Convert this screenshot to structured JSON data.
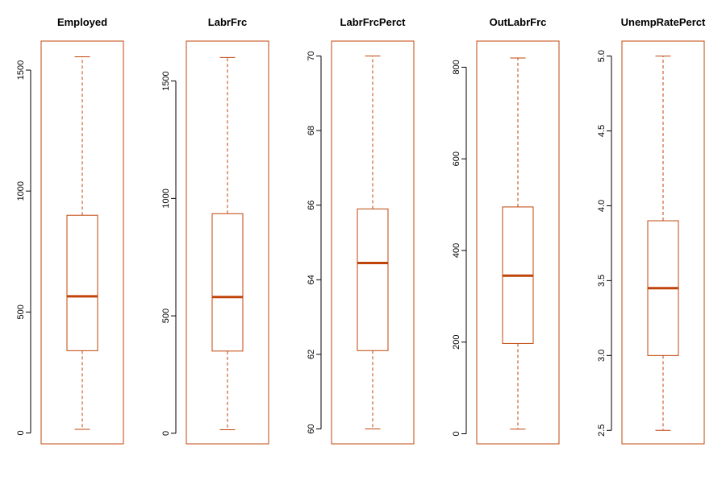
{
  "colors": {
    "box": "#c0440a",
    "median": "#c0440a",
    "text": "#000000",
    "axis": "#000000",
    "background": "#ffffff"
  },
  "chart_data": [
    {
      "type": "boxplot",
      "title": "Employed",
      "ylim": [
        -45,
        1620
      ],
      "ticks": [
        0,
        500,
        1000,
        1500
      ],
      "tick_labels": [
        "0",
        "500",
        "1000",
        "1500"
      ],
      "stats": {
        "min": 15,
        "q1": 340,
        "median": 565,
        "q3": 900,
        "max": 1555
      }
    },
    {
      "type": "boxplot",
      "title": "LabrFrc",
      "ylim": [
        -45,
        1670
      ],
      "ticks": [
        0,
        500,
        1000,
        1500
      ],
      "tick_labels": [
        "0",
        "500",
        "1000",
        "1500"
      ],
      "stats": {
        "min": 15,
        "q1": 350,
        "median": 580,
        "q3": 935,
        "max": 1600
      }
    },
    {
      "type": "boxplot",
      "title": "LabrFrcPerct",
      "ylim": [
        59.6,
        70.4
      ],
      "ticks": [
        60,
        62,
        64,
        66,
        68,
        70
      ],
      "tick_labels": [
        "60",
        "62",
        "64",
        "66",
        "68",
        "70"
      ],
      "stats": {
        "min": 60,
        "q1": 62.1,
        "median": 64.45,
        "q3": 65.9,
        "max": 70
      }
    },
    {
      "type": "boxplot",
      "title": "OutLabrFrc",
      "ylim": [
        -22,
        857
      ],
      "ticks": [
        0,
        200,
        400,
        600,
        800
      ],
      "tick_labels": [
        "0",
        "200",
        "400",
        "600",
        "800"
      ],
      "stats": {
        "min": 10,
        "q1": 197,
        "median": 345,
        "q3": 495,
        "max": 820
      }
    },
    {
      "type": "boxplot",
      "title": "UnempRatePerct",
      "ylim": [
        2.41,
        5.1
      ],
      "ticks": [
        2.5,
        3.0,
        3.5,
        4.0,
        4.5,
        5.0
      ],
      "tick_labels": [
        "2.5",
        "3.0",
        "3.5",
        "4.0",
        "4.5",
        "5.0"
      ],
      "stats": {
        "min": 2.5,
        "q1": 3.0,
        "median": 3.45,
        "q3": 3.9,
        "max": 5.0
      }
    }
  ]
}
